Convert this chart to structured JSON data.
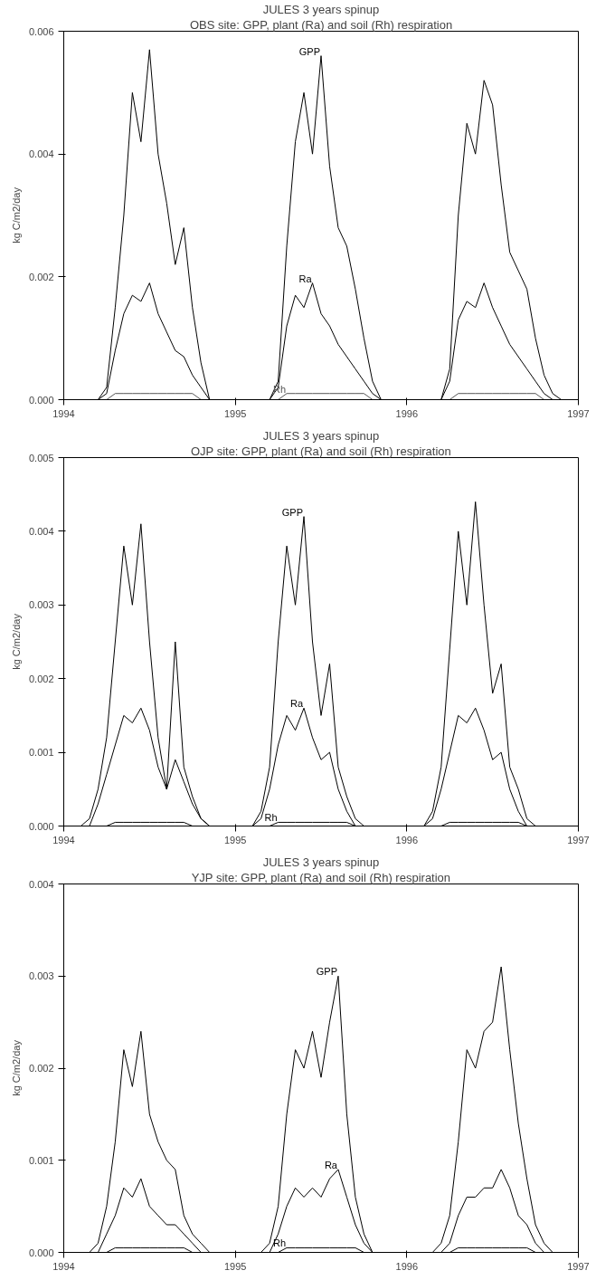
{
  "chart_data": [
    {
      "type": "line",
      "title": "JULES 3 years spinup",
      "subtitle": "OBS site: GPP, plant (Ra) and soil (Rh) respiration",
      "ylabel": "kg C/m2/day",
      "x": [
        1994,
        1994.05,
        1994.1,
        1994.15,
        1994.2,
        1994.25,
        1994.3,
        1994.35,
        1994.4,
        1994.45,
        1994.5,
        1994.55,
        1994.6,
        1994.65,
        1994.7,
        1994.75,
        1994.8,
        1994.85,
        1994.9,
        1994.95,
        1995,
        1995.05,
        1995.1,
        1995.15,
        1995.2,
        1995.25,
        1995.3,
        1995.35,
        1995.4,
        1995.45,
        1995.5,
        1995.55,
        1995.6,
        1995.65,
        1995.7,
        1995.75,
        1995.8,
        1995.85,
        1995.9,
        1995.95,
        1996,
        1996.05,
        1996.1,
        1996.15,
        1996.2,
        1996.25,
        1996.3,
        1996.35,
        1996.4,
        1996.45,
        1996.5,
        1996.55,
        1996.6,
        1996.65,
        1996.7,
        1996.75,
        1996.8,
        1996.85,
        1996.9,
        1996.95,
        1997
      ],
      "series": [
        {
          "name": "GPP",
          "color": "#000000",
          "values": [
            0,
            0,
            0,
            0,
            0,
            0.0002,
            0.0015,
            0.003,
            0.005,
            0.0042,
            0.0057,
            0.004,
            0.0032,
            0.0022,
            0.0028,
            0.0015,
            0.0006,
            0,
            0,
            0,
            0,
            0,
            0,
            0,
            0,
            0.0003,
            0.0025,
            0.0042,
            0.005,
            0.004,
            0.0056,
            0.0038,
            0.0028,
            0.0025,
            0.0018,
            0.001,
            0.0003,
            0,
            0,
            0,
            0,
            0,
            0,
            0,
            0,
            0.0005,
            0.003,
            0.0045,
            0.004,
            0.0052,
            0.0048,
            0.0035,
            0.0024,
            0.0021,
            0.0018,
            0.001,
            0.0004,
            0.0001,
            0,
            0,
            0
          ]
        },
        {
          "name": "Ra",
          "color": "#000000",
          "values": [
            0,
            0,
            0,
            0,
            0,
            0.0001,
            0.0008,
            0.0014,
            0.0017,
            0.0016,
            0.0019,
            0.0014,
            0.0011,
            0.0008,
            0.0007,
            0.0004,
            0.0002,
            0,
            0,
            0,
            0,
            0,
            0,
            0,
            0,
            0.0002,
            0.0012,
            0.0017,
            0.0015,
            0.0019,
            0.0014,
            0.0012,
            0.0009,
            0.0007,
            0.0005,
            0.0003,
            0.0001,
            0,
            0,
            0,
            0,
            0,
            0,
            0,
            0,
            0.0003,
            0.0013,
            0.0016,
            0.0015,
            0.0019,
            0.0015,
            0.0012,
            0.0009,
            0.0007,
            0.0005,
            0.0003,
            0.0001,
            0,
            0,
            0,
            0
          ]
        },
        {
          "name": "Rh",
          "color": "#555555",
          "values": [
            0,
            0,
            0,
            0,
            0,
            0,
            0.0001,
            0.0001,
            0.0001,
            0.0001,
            0.0001,
            0.0001,
            0.0001,
            0.0001,
            0.0001,
            0.0001,
            0,
            0,
            0,
            0,
            0,
            0,
            0,
            0,
            0,
            0,
            0.0001,
            0.0001,
            0.0001,
            0.0001,
            0.0001,
            0.0001,
            0.0001,
            0.0001,
            0.0001,
            0.0001,
            0,
            0,
            0,
            0,
            0,
            0,
            0,
            0,
            0,
            0,
            0.0001,
            0.0001,
            0.0001,
            0.0001,
            0.0001,
            0.0001,
            0.0001,
            0.0001,
            0.0001,
            0.0001,
            0,
            0,
            0,
            0,
            0
          ]
        }
      ],
      "xlim": [
        1994,
        1997
      ],
      "xticks": [
        1994,
        1995,
        1996,
        1997
      ],
      "ylim": [
        0,
        0.006
      ],
      "yticks": [
        {
          "value": 0,
          "label": "0.000"
        },
        {
          "value": 0.002,
          "label": "0.002"
        },
        {
          "value": 0.004,
          "label": "0.004"
        },
        {
          "value": 0.006,
          "label": "0.006"
        }
      ],
      "grid": false,
      "legend": false,
      "line_style": "solid"
    },
    {
      "type": "line",
      "title": "JULES 3 years spinup",
      "subtitle": "OJP site: GPP, plant (Ra) and soil (Rh) respiration",
      "ylabel": "kg C/m2/day",
      "x": [
        1994,
        1994.05,
        1994.1,
        1994.15,
        1994.2,
        1994.25,
        1994.3,
        1994.35,
        1994.4,
        1994.45,
        1994.5,
        1994.55,
        1994.6,
        1994.65,
        1994.7,
        1994.75,
        1994.8,
        1994.85,
        1994.9,
        1994.95,
        1995,
        1995.05,
        1995.1,
        1995.15,
        1995.2,
        1995.25,
        1995.3,
        1995.35,
        1995.4,
        1995.45,
        1995.5,
        1995.55,
        1995.6,
        1995.65,
        1995.7,
        1995.75,
        1995.8,
        1995.85,
        1995.9,
        1995.95,
        1996,
        1996.05,
        1996.1,
        1996.15,
        1996.2,
        1996.25,
        1996.3,
        1996.35,
        1996.4,
        1996.45,
        1996.5,
        1996.55,
        1996.6,
        1996.65,
        1996.7,
        1996.75,
        1996.8,
        1996.85,
        1996.9,
        1996.95,
        1997
      ],
      "series": [
        {
          "name": "GPP",
          "color": "#000000",
          "values": [
            0,
            0,
            0,
            0.0001,
            0.0005,
            0.0012,
            0.0025,
            0.0038,
            0.003,
            0.0041,
            0.0025,
            0.0012,
            0.0005,
            0.0025,
            0.0008,
            0.0004,
            0.0001,
            0,
            0,
            0,
            0,
            0,
            0,
            0.0002,
            0.0008,
            0.0025,
            0.0038,
            0.003,
            0.0042,
            0.0025,
            0.0015,
            0.0022,
            0.0008,
            0.0004,
            0.0001,
            0,
            0,
            0,
            0,
            0,
            0,
            0,
            0,
            0.0002,
            0.0008,
            0.0024,
            0.004,
            0.003,
            0.0044,
            0.003,
            0.0018,
            0.0022,
            0.0008,
            0.0005,
            0.0001,
            0,
            0,
            0,
            0,
            0,
            0
          ]
        },
        {
          "name": "Ra",
          "color": "#000000",
          "values": [
            0,
            0,
            0,
            0,
            0.0003,
            0.0007,
            0.0011,
            0.0015,
            0.0014,
            0.0016,
            0.0013,
            0.0008,
            0.0005,
            0.0009,
            0.0006,
            0.0003,
            0.0001,
            0,
            0,
            0,
            0,
            0,
            0,
            0.0001,
            0.0005,
            0.0011,
            0.0015,
            0.0013,
            0.0016,
            0.0012,
            0.0009,
            0.001,
            0.0005,
            0.0002,
            0,
            0,
            0,
            0,
            0,
            0,
            0,
            0,
            0,
            0.0001,
            0.0005,
            0.001,
            0.0015,
            0.0014,
            0.0016,
            0.0013,
            0.0009,
            0.001,
            0.0005,
            0.0002,
            0,
            0,
            0,
            0,
            0,
            0,
            0
          ]
        },
        {
          "name": "Rh",
          "color": "#000000",
          "values": [
            0,
            0,
            0,
            0,
            0,
            0,
            5e-05,
            5e-05,
            5e-05,
            5e-05,
            5e-05,
            5e-05,
            5e-05,
            5e-05,
            5e-05,
            0,
            0,
            0,
            0,
            0,
            0,
            0,
            0,
            0,
            0,
            5e-05,
            5e-05,
            5e-05,
            5e-05,
            5e-05,
            5e-05,
            5e-05,
            5e-05,
            5e-05,
            0,
            0,
            0,
            0,
            0,
            0,
            0,
            0,
            0,
            0,
            0,
            5e-05,
            5e-05,
            5e-05,
            5e-05,
            5e-05,
            5e-05,
            5e-05,
            5e-05,
            5e-05,
            0,
            0,
            0,
            0,
            0,
            0,
            0
          ]
        }
      ],
      "xlim": [
        1994,
        1997
      ],
      "xticks": [
        1994,
        1995,
        1996,
        1997
      ],
      "ylim": [
        0,
        0.005
      ],
      "yticks": [
        {
          "value": 0,
          "label": "0.000"
        },
        {
          "value": 0.001,
          "label": "0.001"
        },
        {
          "value": 0.002,
          "label": "0.002"
        },
        {
          "value": 0.003,
          "label": "0.003"
        },
        {
          "value": 0.004,
          "label": "0.004"
        },
        {
          "value": 0.005,
          "label": "0.005"
        }
      ],
      "grid": false,
      "legend": false,
      "line_style": "solid"
    },
    {
      "type": "line",
      "title": "JULES 3 years spinup",
      "subtitle": "YJP site: GPP, plant (Ra) and soil (Rh) respiration",
      "ylabel": "kg C/m2/day",
      "x": [
        1994,
        1994.05,
        1994.1,
        1994.15,
        1994.2,
        1994.25,
        1994.3,
        1994.35,
        1994.4,
        1994.45,
        1994.5,
        1994.55,
        1994.6,
        1994.65,
        1994.7,
        1994.75,
        1994.8,
        1994.85,
        1994.9,
        1994.95,
        1995,
        1995.05,
        1995.1,
        1995.15,
        1995.2,
        1995.25,
        1995.3,
        1995.35,
        1995.4,
        1995.45,
        1995.5,
        1995.55,
        1995.6,
        1995.65,
        1995.7,
        1995.75,
        1995.8,
        1995.85,
        1995.9,
        1995.95,
        1996,
        1996.05,
        1996.1,
        1996.15,
        1996.2,
        1996.25,
        1996.3,
        1996.35,
        1996.4,
        1996.45,
        1996.5,
        1996.55,
        1996.6,
        1996.65,
        1996.7,
        1996.75,
        1996.8,
        1996.85,
        1996.9,
        1996.95,
        1997
      ],
      "series": [
        {
          "name": "GPP",
          "color": "#000000",
          "values": [
            0,
            0,
            0,
            0,
            0.0001,
            0.0005,
            0.0012,
            0.0022,
            0.0018,
            0.0024,
            0.0015,
            0.0012,
            0.001,
            0.0009,
            0.0004,
            0.0002,
            0.0001,
            0,
            0,
            0,
            0,
            0,
            0,
            0,
            0.0001,
            0.0005,
            0.0015,
            0.0022,
            0.002,
            0.0024,
            0.0019,
            0.0025,
            0.003,
            0.0015,
            0.0006,
            0.0002,
            0,
            0,
            0,
            0,
            0,
            0,
            0,
            0,
            0.0001,
            0.0004,
            0.0012,
            0.0022,
            0.002,
            0.0024,
            0.0025,
            0.0031,
            0.0022,
            0.0014,
            0.0008,
            0.0003,
            0.0001,
            0,
            0,
            0,
            0
          ]
        },
        {
          "name": "Ra",
          "color": "#000000",
          "values": [
            0,
            0,
            0,
            0,
            0,
            0.0002,
            0.0004,
            0.0007,
            0.0006,
            0.0008,
            0.0005,
            0.0004,
            0.0003,
            0.0003,
            0.0002,
            0.0001,
            0,
            0,
            0,
            0,
            0,
            0,
            0,
            0,
            0,
            0.0002,
            0.0005,
            0.0007,
            0.0006,
            0.0007,
            0.0006,
            0.0008,
            0.0009,
            0.0006,
            0.0003,
            0.0001,
            0,
            0,
            0,
            0,
            0,
            0,
            0,
            0,
            0,
            0.0001,
            0.0004,
            0.0006,
            0.0006,
            0.0007,
            0.0007,
            0.0009,
            0.0007,
            0.0004,
            0.0003,
            0.0001,
            0,
            0,
            0,
            0,
            0
          ]
        },
        {
          "name": "Rh",
          "color": "#000000",
          "values": [
            0,
            0,
            0,
            0,
            0,
            0,
            5e-05,
            5e-05,
            5e-05,
            5e-05,
            5e-05,
            5e-05,
            5e-05,
            5e-05,
            5e-05,
            0,
            0,
            0,
            0,
            0,
            0,
            0,
            0,
            0,
            0,
            0,
            5e-05,
            5e-05,
            5e-05,
            5e-05,
            5e-05,
            5e-05,
            5e-05,
            5e-05,
            5e-05,
            0,
            0,
            0,
            0,
            0,
            0,
            0,
            0,
            0,
            0,
            0,
            5e-05,
            5e-05,
            5e-05,
            5e-05,
            5e-05,
            5e-05,
            5e-05,
            5e-05,
            5e-05,
            0,
            0,
            0,
            0,
            0,
            0
          ]
        }
      ],
      "xlim": [
        1994,
        1997
      ],
      "xticks": [
        1994,
        1995,
        1996,
        1997
      ],
      "ylim": [
        0,
        0.004
      ],
      "yticks": [
        {
          "value": 0,
          "label": "0.000"
        },
        {
          "value": 0.001,
          "label": "0.001"
        },
        {
          "value": 0.002,
          "label": "0.002"
        },
        {
          "value": 0.003,
          "label": "0.003"
        },
        {
          "value": 0.004,
          "label": "0.004"
        }
      ],
      "grid": false,
      "legend": false,
      "line_style": "solid"
    }
  ]
}
